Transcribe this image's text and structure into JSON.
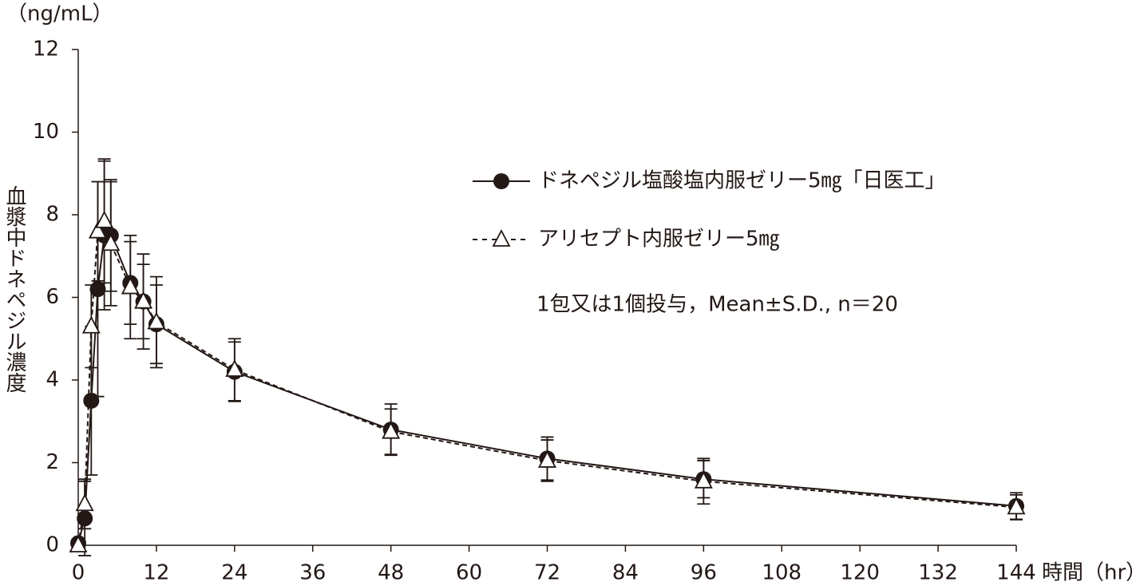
{
  "chart_data": {
    "type": "line",
    "y_label": "血漿中ドネペジル濃度",
    "y_unit": "（ng/mL）",
    "x_label": "時間（hr）",
    "annotation": "1包又は1個投与，Mean±S.D., n＝20",
    "x": [
      0,
      1,
      2,
      3,
      4,
      5,
      8,
      10,
      12,
      24,
      48,
      72,
      96,
      144
    ],
    "series": [
      {
        "name": "ドネペジル塩酸塩内服ゼリー5㎎「日医工」",
        "color": "#231815",
        "marker": "circle",
        "dash": false,
        "values": [
          0.05,
          0.65,
          3.5,
          6.2,
          7.5,
          7.5,
          6.35,
          5.9,
          5.35,
          4.2,
          2.8,
          2.1,
          1.6,
          0.95
        ],
        "errors": [
          0,
          0.9,
          1.8,
          2.6,
          1.8,
          1.35,
          1.0,
          0.9,
          0.95,
          0.72,
          0.62,
          0.52,
          0.45,
          0.32
        ]
      },
      {
        "name": "アリセプト内服ゼリー5㎎",
        "color": "#231815",
        "marker": "triangle",
        "dash": true,
        "values": [
          0,
          1.0,
          5.3,
          7.6,
          7.85,
          7.3,
          6.25,
          5.9,
          5.4,
          4.25,
          2.75,
          2.05,
          1.55,
          0.92
        ],
        "errors": [
          0,
          0.6,
          1.0,
          1.2,
          1.5,
          1.5,
          1.25,
          1.15,
          1.1,
          0.75,
          0.55,
          0.5,
          0.55,
          0.3
        ]
      }
    ],
    "xlim": [
      0,
      144
    ],
    "xticks": [
      0,
      12,
      24,
      36,
      48,
      60,
      72,
      84,
      96,
      108,
      120,
      132,
      144
    ],
    "ylim": [
      0,
      12
    ],
    "yticks": [
      0,
      2,
      4,
      6,
      8,
      10,
      12
    ]
  }
}
